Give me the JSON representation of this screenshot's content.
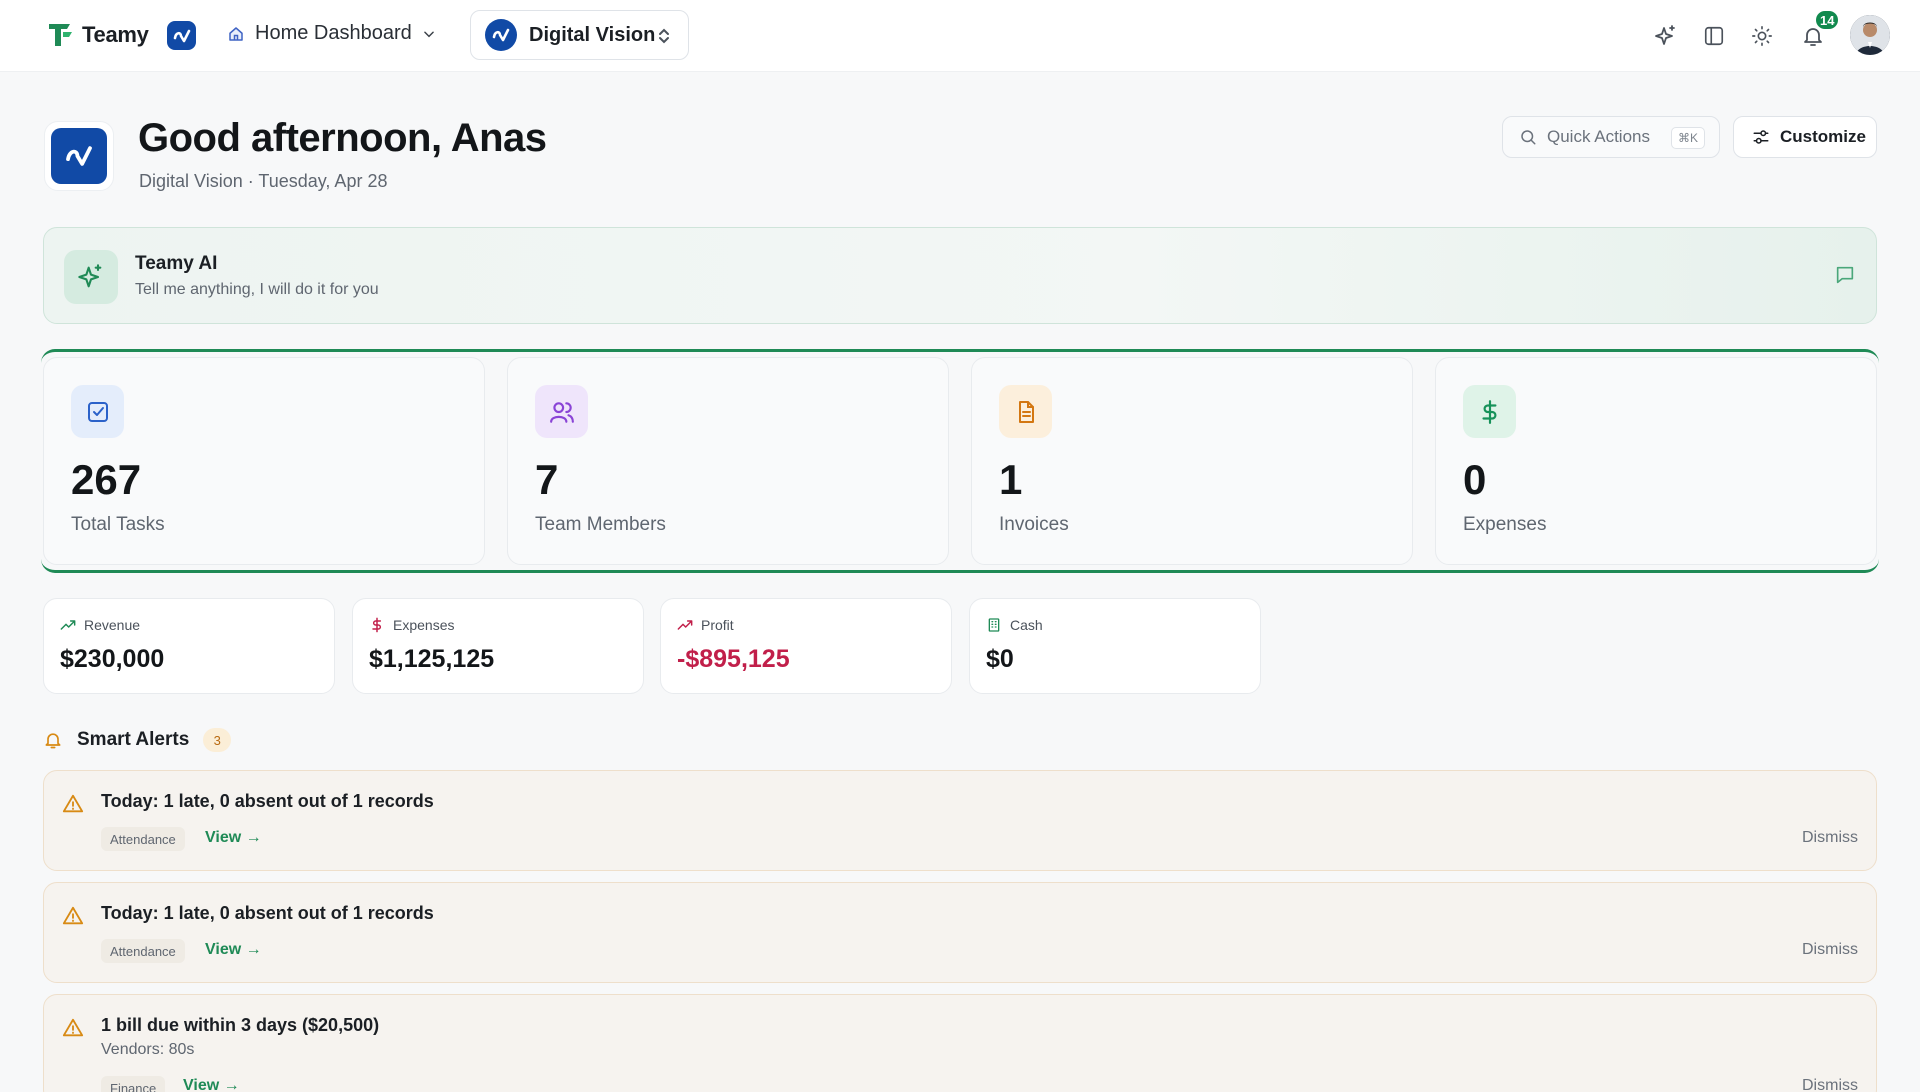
{
  "topbar": {
    "brand": "Teamy",
    "home_menu": "Home Dashboard",
    "workspace": "Digital Vision",
    "notification_count": "14"
  },
  "header": {
    "greeting": "Good afternoon, Anas",
    "subline": "Digital Vision · Tuesday, Apr 28",
    "quick_actions": "Quick Actions",
    "shortcut": "⌘K",
    "customize": "Customize"
  },
  "ai": {
    "title": "Teamy AI",
    "subtitle": "Tell me anything, I will do it for you"
  },
  "stats": [
    {
      "value": "267",
      "label": "Total Tasks",
      "icon": "check-square-icon",
      "color": "#2b62c9",
      "bg": "#e4edfb"
    },
    {
      "value": "7",
      "label": "Team Members",
      "icon": "users-icon",
      "color": "#8a44d6",
      "bg": "#efe5fb"
    },
    {
      "value": "1",
      "label": "Invoices",
      "icon": "file-text-icon",
      "color": "#d37712",
      "bg": "#fcefdc"
    },
    {
      "value": "0",
      "label": "Expenses",
      "icon": "dollar-icon",
      "color": "#17925a",
      "bg": "#dff3e8"
    }
  ],
  "finance": [
    {
      "label": "Revenue",
      "value": "$230,000",
      "icon": "trending-up-icon"
    },
    {
      "label": "Expenses",
      "value": "$1,125,125",
      "icon": "dollar-icon"
    },
    {
      "label": "Profit",
      "value": "-$895,125",
      "icon": "trending-down-icon"
    },
    {
      "label": "Cash",
      "value": "$0",
      "icon": "building-icon"
    }
  ],
  "alerts": {
    "title": "Smart Alerts",
    "count": "3",
    "items": [
      {
        "title": "Today: 1 late, 0 absent out of 1 records",
        "subtitle": "",
        "tag": "Attendance",
        "view": "View →",
        "dismiss": "Dismiss"
      },
      {
        "title": "Today: 1 late, 0 absent out of 1 records",
        "subtitle": "",
        "tag": "Attendance",
        "view": "View →",
        "dismiss": "Dismiss"
      },
      {
        "title": "1 bill due within 3 days ($20,500)",
        "subtitle": "Vendors: 80s",
        "tag": "Finance",
        "view": "View →",
        "dismiss": "Dismiss"
      }
    ]
  },
  "colors": {
    "accent": "#1f8a56",
    "brand_blue": "#114aa6",
    "negative": "#c11f4a",
    "warning": "#d88a14"
  }
}
